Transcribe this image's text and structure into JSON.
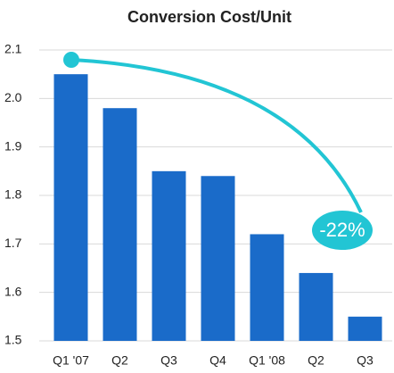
{
  "chart_data": {
    "type": "bar",
    "title": "Conversion Cost/Unit",
    "categories": [
      "Q1 '07",
      "Q2",
      "Q3",
      "Q4",
      "Q1 '08",
      "Q2",
      "Q3"
    ],
    "values": [
      2.05,
      1.98,
      1.85,
      1.84,
      1.72,
      1.64,
      1.55
    ],
    "color": "#1a6bc9",
    "ylim": [
      1.5,
      2.1
    ],
    "yticks": [
      1.5,
      1.6,
      1.7,
      1.8,
      1.9,
      {
        "value": 2,
        "label": "2.0"
      },
      2.1
    ],
    "grid": true,
    "annotation": "-22%"
  }
}
